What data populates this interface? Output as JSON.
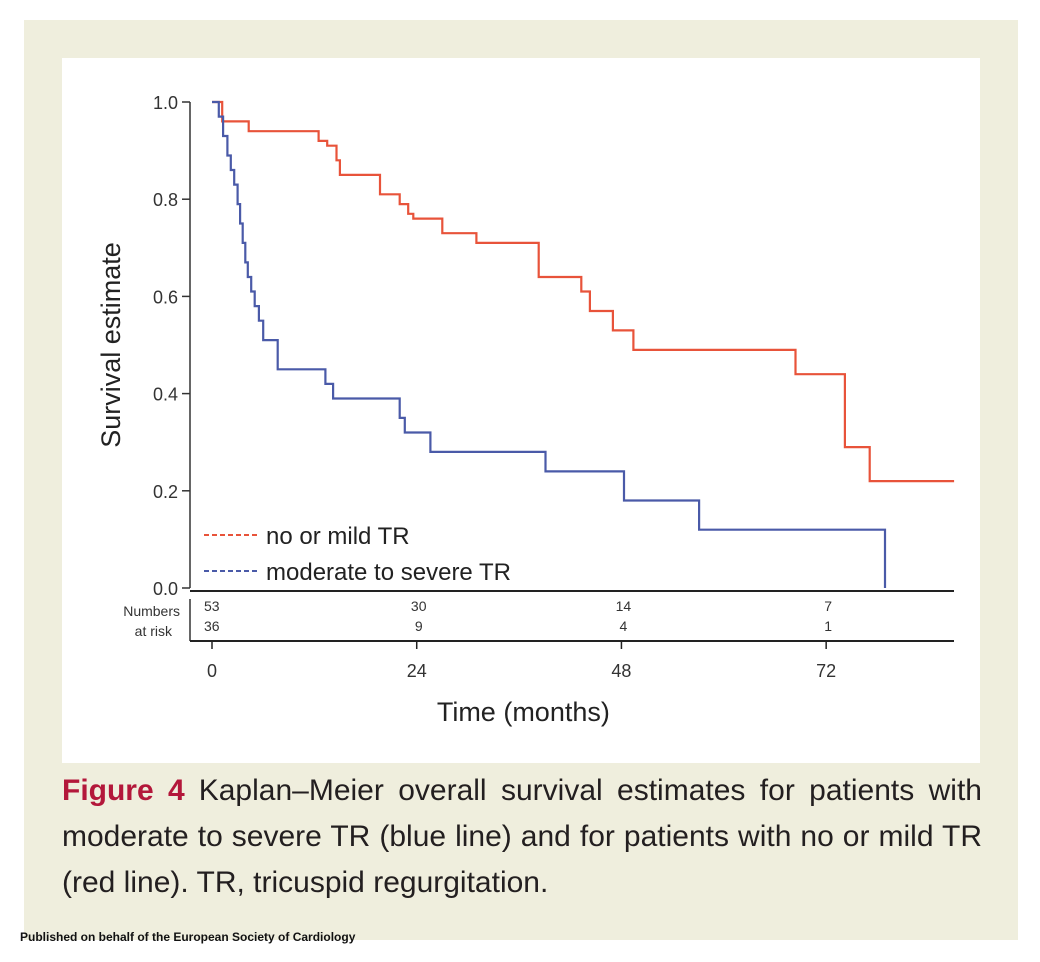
{
  "caption": {
    "label": "Figure 4",
    "text": "Kaplan–Meier overall survival estimates for patients with moderate to severe TR (blue line) and for patients with no or mild TR (red line). TR, tricuspid regurgitation."
  },
  "footer": "Published on behalf of the European Society of Cardiology",
  "chart_data": {
    "type": "line",
    "step": true,
    "title": "",
    "xlabel": "Time (months)",
    "ylabel": "Survival estimate",
    "xlim": [
      0,
      90
    ],
    "ylim": [
      0,
      1
    ],
    "x_ticks": [
      "0",
      "24",
      "48",
      "72"
    ],
    "x_tick_values": [
      0,
      24,
      48,
      72
    ],
    "y_ticks": [
      "0.0",
      "0.2",
      "0.4",
      "0.6",
      "0.8",
      "1.0"
    ],
    "y_tick_values": [
      0,
      0.2,
      0.4,
      0.6,
      0.8,
      1.0
    ],
    "legend_placement": "bottom-left",
    "series": [
      {
        "name": "no or mild TR",
        "color": "#e8533a",
        "points": [
          [
            0,
            1.0
          ],
          [
            1.2,
            1.0
          ],
          [
            1.2,
            0.96
          ],
          [
            4.3,
            0.96
          ],
          [
            4.3,
            0.94
          ],
          [
            12.5,
            0.94
          ],
          [
            12.5,
            0.92
          ],
          [
            13.5,
            0.92
          ],
          [
            13.5,
            0.91
          ],
          [
            14.6,
            0.91
          ],
          [
            14.6,
            0.88
          ],
          [
            15,
            0.88
          ],
          [
            15,
            0.85
          ],
          [
            19.7,
            0.85
          ],
          [
            19.7,
            0.81
          ],
          [
            22,
            0.81
          ],
          [
            22,
            0.79
          ],
          [
            23,
            0.79
          ],
          [
            23,
            0.77
          ],
          [
            23.6,
            0.77
          ],
          [
            23.6,
            0.76
          ],
          [
            27,
            0.76
          ],
          [
            27,
            0.73
          ],
          [
            31,
            0.73
          ],
          [
            31,
            0.71
          ],
          [
            38.3,
            0.71
          ],
          [
            38.3,
            0.64
          ],
          [
            43.3,
            0.64
          ],
          [
            43.3,
            0.61
          ],
          [
            44.3,
            0.61
          ],
          [
            44.3,
            0.57
          ],
          [
            47,
            0.57
          ],
          [
            47,
            0.53
          ],
          [
            49.4,
            0.53
          ],
          [
            49.4,
            0.49
          ],
          [
            68.4,
            0.49
          ],
          [
            68.4,
            0.44
          ],
          [
            74.2,
            0.44
          ],
          [
            74.2,
            0.29
          ],
          [
            77.1,
            0.29
          ],
          [
            77.1,
            0.22
          ],
          [
            87,
            0.22
          ]
        ]
      },
      {
        "name": "moderate to severe TR",
        "color": "#4a5aa8",
        "points": [
          [
            0,
            1.0
          ],
          [
            0.8,
            1.0
          ],
          [
            0.8,
            0.97
          ],
          [
            1.3,
            0.97
          ],
          [
            1.3,
            0.93
          ],
          [
            1.8,
            0.93
          ],
          [
            1.8,
            0.89
          ],
          [
            2.2,
            0.89
          ],
          [
            2.2,
            0.86
          ],
          [
            2.6,
            0.86
          ],
          [
            2.6,
            0.83
          ],
          [
            3,
            0.83
          ],
          [
            3,
            0.79
          ],
          [
            3.3,
            0.79
          ],
          [
            3.3,
            0.75
          ],
          [
            3.6,
            0.75
          ],
          [
            3.6,
            0.71
          ],
          [
            3.9,
            0.71
          ],
          [
            3.9,
            0.67
          ],
          [
            4.2,
            0.67
          ],
          [
            4.2,
            0.64
          ],
          [
            4.6,
            0.64
          ],
          [
            4.6,
            0.61
          ],
          [
            5,
            0.61
          ],
          [
            5,
            0.58
          ],
          [
            5.5,
            0.58
          ],
          [
            5.5,
            0.55
          ],
          [
            6,
            0.55
          ],
          [
            6,
            0.51
          ],
          [
            7.7,
            0.51
          ],
          [
            7.7,
            0.45
          ],
          [
            13.3,
            0.45
          ],
          [
            13.3,
            0.42
          ],
          [
            14.2,
            0.42
          ],
          [
            14.2,
            0.39
          ],
          [
            22,
            0.39
          ],
          [
            22,
            0.35
          ],
          [
            22.6,
            0.35
          ],
          [
            22.6,
            0.32
          ],
          [
            25.6,
            0.32
          ],
          [
            25.6,
            0.28
          ],
          [
            39.1,
            0.28
          ],
          [
            39.1,
            0.24
          ],
          [
            48.3,
            0.24
          ],
          [
            48.3,
            0.18
          ],
          [
            57.1,
            0.18
          ],
          [
            57.1,
            0.12
          ],
          [
            78.9,
            0.12
          ],
          [
            78.9,
            0.0
          ]
        ]
      }
    ],
    "risk_table": {
      "label_line1": "Numbers",
      "label_line2": "at risk",
      "times": [
        0,
        24,
        48,
        72
      ],
      "rows": [
        {
          "series": "no or mild TR",
          "values": [
            "53",
            "30",
            "14",
            "7"
          ]
        },
        {
          "series": "moderate to severe TR",
          "values": [
            "36",
            "9",
            "4",
            "1"
          ]
        }
      ]
    }
  }
}
